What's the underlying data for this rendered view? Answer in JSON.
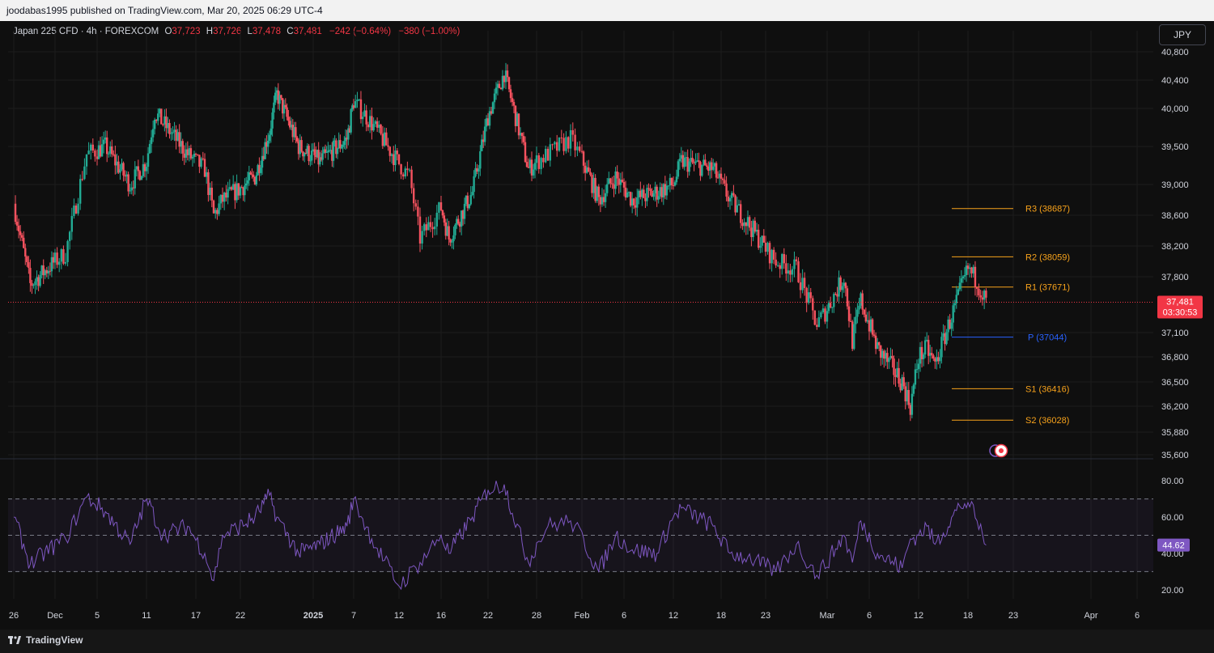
{
  "header": {
    "publisher_line": "joodabas1995 published on TradingView.com, Mar 20, 2025 06:29 UTC-4"
  },
  "symbol": {
    "name": "Japan 225 CFD · 4h · FOREXCOM",
    "open_label": "O",
    "open": "37,723",
    "high_label": "H",
    "high": "37,726",
    "low_label": "L",
    "low": "37,478",
    "close_label": "C",
    "close": "37,481",
    "change": "−242 (−0.64%)",
    "change2": "−380 (−1.00%)"
  },
  "currency_button": "JPY",
  "footer": {
    "brand": "TradingView"
  },
  "colors": {
    "background": "#0f0f0f",
    "grid": "#1c1c1c",
    "up": "#22ab94",
    "down": "#f7525f",
    "pivot_orange": "#f7a21b",
    "pivot_blue": "#2962ff",
    "rsi": "#7e57c2",
    "price_tag": "#f23645"
  },
  "chart_data": [
    {
      "type": "candlestick",
      "timeframe": "4h",
      "y_axis_ticks": [
        "40,800",
        "40,400",
        "40,000",
        "39,500",
        "39,000",
        "38,600",
        "38,200",
        "37,800",
        "37,100",
        "36,800",
        "36,500",
        "36,200",
        "35,880",
        "35,600"
      ],
      "ylim": [
        35550,
        40900
      ],
      "x_axis_ticks": [
        "26",
        "Dec",
        "5",
        "11",
        "17",
        "22",
        "2025",
        "7",
        "12",
        "16",
        "22",
        "28",
        "Feb",
        "6",
        "12",
        "18",
        "23",
        "Mar",
        "6",
        "12",
        "18",
        "23",
        "Apr",
        "6"
      ],
      "last_price": {
        "value": 37481,
        "label": "37,481",
        "countdown": "03:30:53"
      },
      "pivot_levels": [
        {
          "name": "R3",
          "value": 38687,
          "label": "R3 (38687)"
        },
        {
          "name": "R2",
          "value": 38059,
          "label": "R2 (38059)"
        },
        {
          "name": "R1",
          "value": 37671,
          "label": "R1 (37671)"
        },
        {
          "name": "P",
          "value": 37044,
          "label": "P (37044)"
        },
        {
          "name": "S1",
          "value": 36416,
          "label": "S1 (36416)"
        },
        {
          "name": "S2",
          "value": 36028,
          "label": "S2 (36028)"
        }
      ],
      "close_path": [
        {
          "x": "Nov 26",
          "y": 38750
        },
        {
          "x": "Nov 28",
          "y": 37700
        },
        {
          "x": "Dec 2",
          "y": 38100
        },
        {
          "x": "Dec 4",
          "y": 39400
        },
        {
          "x": "Dec 6",
          "y": 39500
        },
        {
          "x": "Dec 9",
          "y": 39000
        },
        {
          "x": "Dec 11",
          "y": 39300
        },
        {
          "x": "Dec 12",
          "y": 39950
        },
        {
          "x": "Dec 16",
          "y": 39400
        },
        {
          "x": "Dec 18",
          "y": 39200
        },
        {
          "x": "Dec 19",
          "y": 38600
        },
        {
          "x": "Dec 20",
          "y": 38800
        },
        {
          "x": "Dec 24",
          "y": 39100
        },
        {
          "x": "Dec 26",
          "y": 39700
        },
        {
          "x": "Dec 27",
          "y": 40200
        },
        {
          "x": "Dec 30",
          "y": 39500
        },
        {
          "x": "Jan 2",
          "y": 39300
        },
        {
          "x": "Jan 6",
          "y": 39600
        },
        {
          "x": "Jan 7",
          "y": 40100
        },
        {
          "x": "Jan 9",
          "y": 39800
        },
        {
          "x": "Jan 13",
          "y": 39100
        },
        {
          "x": "Jan 14",
          "y": 38300
        },
        {
          "x": "Jan 16",
          "y": 38700
        },
        {
          "x": "Jan 17",
          "y": 38300
        },
        {
          "x": "Jan 20",
          "y": 38900
        },
        {
          "x": "Jan 22",
          "y": 39900
        },
        {
          "x": "Jan 24",
          "y": 40500
        },
        {
          "x": "Jan 27",
          "y": 39200
        },
        {
          "x": "Jan 29",
          "y": 39400
        },
        {
          "x": "Jan 31",
          "y": 39600
        },
        {
          "x": "Feb 3",
          "y": 38800
        },
        {
          "x": "Feb 5",
          "y": 39100
        },
        {
          "x": "Feb 7",
          "y": 38800
        },
        {
          "x": "Feb 10",
          "y": 38900
        },
        {
          "x": "Feb 12",
          "y": 39000
        },
        {
          "x": "Feb 13",
          "y": 39300
        },
        {
          "x": "Feb 17",
          "y": 39200
        },
        {
          "x": "Feb 19",
          "y": 38800
        },
        {
          "x": "Feb 21",
          "y": 38500
        },
        {
          "x": "Feb 24",
          "y": 38000
        },
        {
          "x": "Feb 26",
          "y": 37900
        },
        {
          "x": "Feb 28",
          "y": 37200
        },
        {
          "x": "Mar 3",
          "y": 37800
        },
        {
          "x": "Mar 4",
          "y": 37000
        },
        {
          "x": "Mar 5",
          "y": 37500
        },
        {
          "x": "Mar 7",
          "y": 36900
        },
        {
          "x": "Mar 10",
          "y": 36500
        },
        {
          "x": "Mar 11",
          "y": 36200
        },
        {
          "x": "Mar 12",
          "y": 36800
        },
        {
          "x": "Mar 13",
          "y": 36900
        },
        {
          "x": "Mar 14",
          "y": 36700
        },
        {
          "x": "Mar 17",
          "y": 37600
        },
        {
          "x": "Mar 18",
          "y": 37900
        },
        {
          "x": "Mar 19",
          "y": 37750
        },
        {
          "x": "Mar 20",
          "y": 37481
        }
      ]
    },
    {
      "type": "line",
      "indicator": "RSI",
      "y_axis_ticks": [
        "80.00",
        "60.00",
        "40.00",
        "20.00"
      ],
      "ylim": [
        15,
        85
      ],
      "bands": [
        70,
        50,
        30
      ],
      "current": {
        "value": 44.62,
        "label": "44.62"
      },
      "series": [
        {
          "x": "Nov 26",
          "y": 60
        },
        {
          "x": "Nov 28",
          "y": 34
        },
        {
          "x": "Dec 2",
          "y": 48
        },
        {
          "x": "Dec 4",
          "y": 71
        },
        {
          "x": "Dec 6",
          "y": 63
        },
        {
          "x": "Dec 9",
          "y": 45
        },
        {
          "x": "Dec 11",
          "y": 70
        },
        {
          "x": "Dec 13",
          "y": 50
        },
        {
          "x": "Dec 16",
          "y": 55
        },
        {
          "x": "Dec 18",
          "y": 40
        },
        {
          "x": "Dec 19",
          "y": 25
        },
        {
          "x": "Dec 20",
          "y": 50
        },
        {
          "x": "Dec 24",
          "y": 60
        },
        {
          "x": "Dec 26",
          "y": 72
        },
        {
          "x": "Dec 27",
          "y": 60
        },
        {
          "x": "Dec 30",
          "y": 40
        },
        {
          "x": "Jan 2",
          "y": 45
        },
        {
          "x": "Jan 6",
          "y": 55
        },
        {
          "x": "Jan 7",
          "y": 70
        },
        {
          "x": "Jan 9",
          "y": 48
        },
        {
          "x": "Jan 12",
          "y": 22
        },
        {
          "x": "Jan 14",
          "y": 35
        },
        {
          "x": "Jan 16",
          "y": 50
        },
        {
          "x": "Jan 17",
          "y": 40
        },
        {
          "x": "Jan 20",
          "y": 60
        },
        {
          "x": "Jan 22",
          "y": 75
        },
        {
          "x": "Jan 24",
          "y": 78
        },
        {
          "x": "Jan 27",
          "y": 35
        },
        {
          "x": "Jan 29",
          "y": 55
        },
        {
          "x": "Jan 31",
          "y": 58
        },
        {
          "x": "Feb 3",
          "y": 30
        },
        {
          "x": "Feb 5",
          "y": 50
        },
        {
          "x": "Feb 7",
          "y": 42
        },
        {
          "x": "Feb 10",
          "y": 40
        },
        {
          "x": "Feb 12",
          "y": 60
        },
        {
          "x": "Feb 13",
          "y": 65
        },
        {
          "x": "Feb 17",
          "y": 55
        },
        {
          "x": "Feb 19",
          "y": 40
        },
        {
          "x": "Feb 21",
          "y": 38
        },
        {
          "x": "Feb 24",
          "y": 30
        },
        {
          "x": "Feb 26",
          "y": 45
        },
        {
          "x": "Feb 28",
          "y": 28
        },
        {
          "x": "Mar 3",
          "y": 50
        },
        {
          "x": "Mar 4",
          "y": 35
        },
        {
          "x": "Mar 5",
          "y": 58
        },
        {
          "x": "Mar 7",
          "y": 40
        },
        {
          "x": "Mar 10",
          "y": 32
        },
        {
          "x": "Mar 11",
          "y": 48
        },
        {
          "x": "Mar 12",
          "y": 50
        },
        {
          "x": "Mar 13",
          "y": 55
        },
        {
          "x": "Mar 14",
          "y": 45
        },
        {
          "x": "Mar 17",
          "y": 66
        },
        {
          "x": "Mar 18",
          "y": 68
        },
        {
          "x": "Mar 19",
          "y": 58
        },
        {
          "x": "Mar 20",
          "y": 44.62
        }
      ]
    }
  ]
}
